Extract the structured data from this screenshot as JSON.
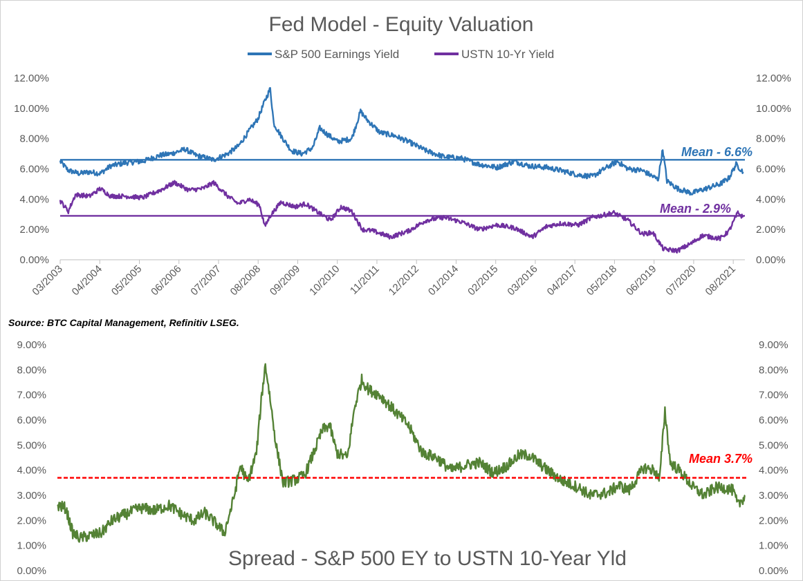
{
  "colors": {
    "earnings_yield": "#2E75B6",
    "ustn_yield": "#7030A0",
    "spread": "#548235",
    "spread_mean": "#FF0000",
    "axis_text": "#595959"
  },
  "source": "Source: BTC Capital Management, Refinitiv LSEG.",
  "chart_data": [
    {
      "type": "line",
      "title": "Fed Model - Equity Valuation",
      "legend_position": "top",
      "x_tick_labels": [
        "03/2003",
        "04/2004",
        "05/2005",
        "06/2006",
        "07/2007",
        "08/2008",
        "09/2009",
        "10/2010",
        "11/2011",
        "12/2012",
        "01/2014",
        "02/2015",
        "03/2016",
        "04/2017",
        "05/2018",
        "06/2019",
        "07/2020",
        "08/2021"
      ],
      "y_tick_labels": [
        "0.00%",
        "2.00%",
        "4.00%",
        "6.00%",
        "8.00%",
        "10.00%",
        "12.00%"
      ],
      "ylim": [
        0,
        12
      ],
      "xlim": [
        2003.17,
        2022.5
      ],
      "grid": false,
      "series": [
        {
          "name": "S&P 500 Earnings Yield",
          "mean_label": "Mean - 6.6%",
          "mean": 6.6,
          "points": [
            [
              2003.17,
              6.5
            ],
            [
              2003.4,
              5.9
            ],
            [
              2003.7,
              5.7
            ],
            [
              2004.0,
              5.8
            ],
            [
              2004.3,
              5.7
            ],
            [
              2004.6,
              6.2
            ],
            [
              2005.0,
              6.4
            ],
            [
              2005.5,
              6.5
            ],
            [
              2006.0,
              6.9
            ],
            [
              2006.3,
              7.0
            ],
            [
              2006.7,
              7.3
            ],
            [
              2007.0,
              6.9
            ],
            [
              2007.5,
              6.6
            ],
            [
              2007.9,
              7.0
            ],
            [
              2008.2,
              7.5
            ],
            [
              2008.5,
              8.5
            ],
            [
              2008.75,
              9.3
            ],
            [
              2008.95,
              10.5
            ],
            [
              2009.1,
              11.3
            ],
            [
              2009.2,
              9.0
            ],
            [
              2009.4,
              8.2
            ],
            [
              2009.7,
              7.2
            ],
            [
              2010.0,
              7.0
            ],
            [
              2010.3,
              7.4
            ],
            [
              2010.5,
              8.7
            ],
            [
              2010.7,
              8.3
            ],
            [
              2011.0,
              7.8
            ],
            [
              2011.4,
              8.0
            ],
            [
              2011.65,
              9.8
            ],
            [
              2011.85,
              9.2
            ],
            [
              2012.2,
              8.4
            ],
            [
              2012.6,
              8.2
            ],
            [
              2013.0,
              7.8
            ],
            [
              2013.5,
              7.2
            ],
            [
              2014.0,
              6.8
            ],
            [
              2014.5,
              6.7
            ],
            [
              2015.0,
              6.3
            ],
            [
              2015.5,
              6.1
            ],
            [
              2016.0,
              6.5
            ],
            [
              2016.4,
              6.2
            ],
            [
              2016.9,
              6.1
            ],
            [
              2017.3,
              5.9
            ],
            [
              2017.8,
              5.6
            ],
            [
              2018.2,
              5.5
            ],
            [
              2018.6,
              6.1
            ],
            [
              2018.9,
              6.5
            ],
            [
              2019.2,
              6.0
            ],
            [
              2019.6,
              5.9
            ],
            [
              2019.9,
              5.5
            ],
            [
              2020.05,
              5.3
            ],
            [
              2020.18,
              7.3
            ],
            [
              2020.3,
              5.2
            ],
            [
              2020.6,
              4.7
            ],
            [
              2021.0,
              4.4
            ],
            [
              2021.4,
              4.7
            ],
            [
              2021.8,
              5.0
            ],
            [
              2022.05,
              5.4
            ],
            [
              2022.25,
              6.3
            ],
            [
              2022.45,
              5.8
            ]
          ]
        },
        {
          "name": "USTN 10-Yr Yield",
          "mean_label": "Mean - 2.9%",
          "mean": 2.9,
          "points": [
            [
              2003.17,
              3.9
            ],
            [
              2003.4,
              3.2
            ],
            [
              2003.6,
              4.3
            ],
            [
              2004.0,
              4.2
            ],
            [
              2004.3,
              4.7
            ],
            [
              2004.6,
              4.2
            ],
            [
              2005.0,
              4.2
            ],
            [
              2005.5,
              4.1
            ],
            [
              2006.0,
              4.6
            ],
            [
              2006.4,
              5.1
            ],
            [
              2006.8,
              4.6
            ],
            [
              2007.2,
              4.7
            ],
            [
              2007.5,
              5.1
            ],
            [
              2007.9,
              4.2
            ],
            [
              2008.2,
              3.7
            ],
            [
              2008.5,
              4.0
            ],
            [
              2008.8,
              3.6
            ],
            [
              2008.95,
              2.2
            ],
            [
              2009.1,
              2.9
            ],
            [
              2009.4,
              3.8
            ],
            [
              2009.8,
              3.5
            ],
            [
              2010.1,
              3.7
            ],
            [
              2010.4,
              3.2
            ],
            [
              2010.8,
              2.6
            ],
            [
              2011.1,
              3.5
            ],
            [
              2011.4,
              3.2
            ],
            [
              2011.7,
              2.0
            ],
            [
              2012.0,
              1.9
            ],
            [
              2012.5,
              1.5
            ],
            [
              2013.0,
              1.9
            ],
            [
              2013.5,
              2.6
            ],
            [
              2014.0,
              2.8
            ],
            [
              2014.5,
              2.5
            ],
            [
              2015.0,
              2.0
            ],
            [
              2015.5,
              2.3
            ],
            [
              2016.0,
              2.1
            ],
            [
              2016.5,
              1.5
            ],
            [
              2016.9,
              2.2
            ],
            [
              2017.3,
              2.4
            ],
            [
              2017.8,
              2.3
            ],
            [
              2018.2,
              2.8
            ],
            [
              2018.8,
              3.1
            ],
            [
              2019.2,
              2.6
            ],
            [
              2019.6,
              1.7
            ],
            [
              2019.9,
              1.8
            ],
            [
              2020.2,
              0.7
            ],
            [
              2020.6,
              0.6
            ],
            [
              2021.0,
              1.1
            ],
            [
              2021.3,
              1.6
            ],
            [
              2021.8,
              1.4
            ],
            [
              2022.05,
              1.9
            ],
            [
              2022.3,
              3.1
            ],
            [
              2022.45,
              2.8
            ]
          ]
        }
      ]
    },
    {
      "type": "line",
      "title": "Spread - S&P 500 EY to USTN 10-Year Yld",
      "y_tick_labels": [
        "0.00%",
        "1.00%",
        "2.00%",
        "3.00%",
        "4.00%",
        "5.00%",
        "6.00%",
        "7.00%",
        "8.00%",
        "9.00%"
      ],
      "ylim": [
        0,
        9
      ],
      "xlim": [
        2003.17,
        2022.5
      ],
      "grid": false,
      "series": [
        {
          "name": "Spread",
          "mean_label": "Mean 3.7%",
          "mean": 3.7,
          "points": [
            [
              2003.17,
              2.6
            ],
            [
              2003.4,
              2.5
            ],
            [
              2003.6,
              1.5
            ],
            [
              2003.8,
              1.3
            ],
            [
              2004.1,
              1.4
            ],
            [
              2004.4,
              1.5
            ],
            [
              2004.7,
              2.0
            ],
            [
              2005.0,
              2.2
            ],
            [
              2005.5,
              2.5
            ],
            [
              2005.9,
              2.4
            ],
            [
              2006.3,
              2.6
            ],
            [
              2006.7,
              2.2
            ],
            [
              2007.0,
              2.0
            ],
            [
              2007.3,
              2.3
            ],
            [
              2007.6,
              1.9
            ],
            [
              2007.85,
              1.5
            ],
            [
              2008.1,
              2.8
            ],
            [
              2008.3,
              4.2
            ],
            [
              2008.5,
              3.5
            ],
            [
              2008.75,
              4.7
            ],
            [
              2008.9,
              7.0
            ],
            [
              2009.0,
              8.2
            ],
            [
              2009.1,
              7.2
            ],
            [
              2009.3,
              5.0
            ],
            [
              2009.5,
              3.5
            ],
            [
              2009.8,
              3.6
            ],
            [
              2010.1,
              3.8
            ],
            [
              2010.3,
              4.5
            ],
            [
              2010.6,
              5.6
            ],
            [
              2010.8,
              5.8
            ],
            [
              2011.0,
              4.7
            ],
            [
              2011.3,
              4.5
            ],
            [
              2011.5,
              6.5
            ],
            [
              2011.7,
              7.6
            ],
            [
              2011.9,
              7.2
            ],
            [
              2012.2,
              7.0
            ],
            [
              2012.6,
              6.4
            ],
            [
              2013.0,
              5.8
            ],
            [
              2013.4,
              4.7
            ],
            [
              2013.8,
              4.5
            ],
            [
              2014.2,
              4.0
            ],
            [
              2014.6,
              4.2
            ],
            [
              2015.0,
              4.3
            ],
            [
              2015.4,
              3.9
            ],
            [
              2015.8,
              4.2
            ],
            [
              2016.1,
              4.6
            ],
            [
              2016.4,
              4.6
            ],
            [
              2016.9,
              4.0
            ],
            [
              2017.3,
              3.6
            ],
            [
              2017.8,
              3.3
            ],
            [
              2018.1,
              3.0
            ],
            [
              2018.6,
              3.1
            ],
            [
              2018.9,
              3.4
            ],
            [
              2019.2,
              3.2
            ],
            [
              2019.6,
              4.1
            ],
            [
              2019.9,
              4.0
            ],
            [
              2020.05,
              3.6
            ],
            [
              2020.2,
              6.4
            ],
            [
              2020.35,
              4.3
            ],
            [
              2020.6,
              4.0
            ],
            [
              2021.0,
              3.3
            ],
            [
              2021.3,
              3.0
            ],
            [
              2021.6,
              3.3
            ],
            [
              2021.9,
              3.3
            ],
            [
              2022.1,
              3.2
            ],
            [
              2022.25,
              2.6
            ],
            [
              2022.45,
              3.0
            ]
          ]
        }
      ]
    }
  ]
}
